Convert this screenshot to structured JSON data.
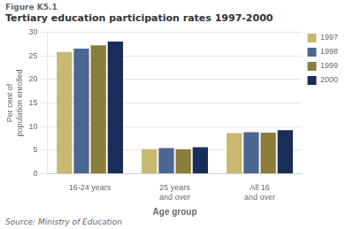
{
  "chart_data": {
    "type": "bar",
    "title": "Tertiary education participation rates 1997-2000",
    "annotations": [
      "Figure K5.1",
      "Source: Ministry of Education"
    ],
    "xlabel": "Age group",
    "ylabel": "Per cent of\npopulation enrolled",
    "categories": [
      "16-24 years",
      "25 years\nand over",
      "All 16\nand over"
    ],
    "series": [
      {
        "name": "1997",
        "color": "#c8b870",
        "values": [
          25.8,
          5.2,
          8.6
        ]
      },
      {
        "name": "1998",
        "color": "#4a6791",
        "values": [
          26.5,
          5.4,
          8.8
        ]
      },
      {
        "name": "1999",
        "color": "#8b7d3a",
        "values": [
          27.2,
          5.2,
          8.7
        ]
      },
      {
        "name": "2000",
        "color": "#1a2d5a",
        "values": [
          28.0,
          5.6,
          9.2
        ]
      }
    ],
    "ylim": [
      0,
      30
    ],
    "yticks": [
      0,
      5,
      10,
      15,
      20,
      25,
      30
    ],
    "grid": true,
    "legend": "right"
  }
}
